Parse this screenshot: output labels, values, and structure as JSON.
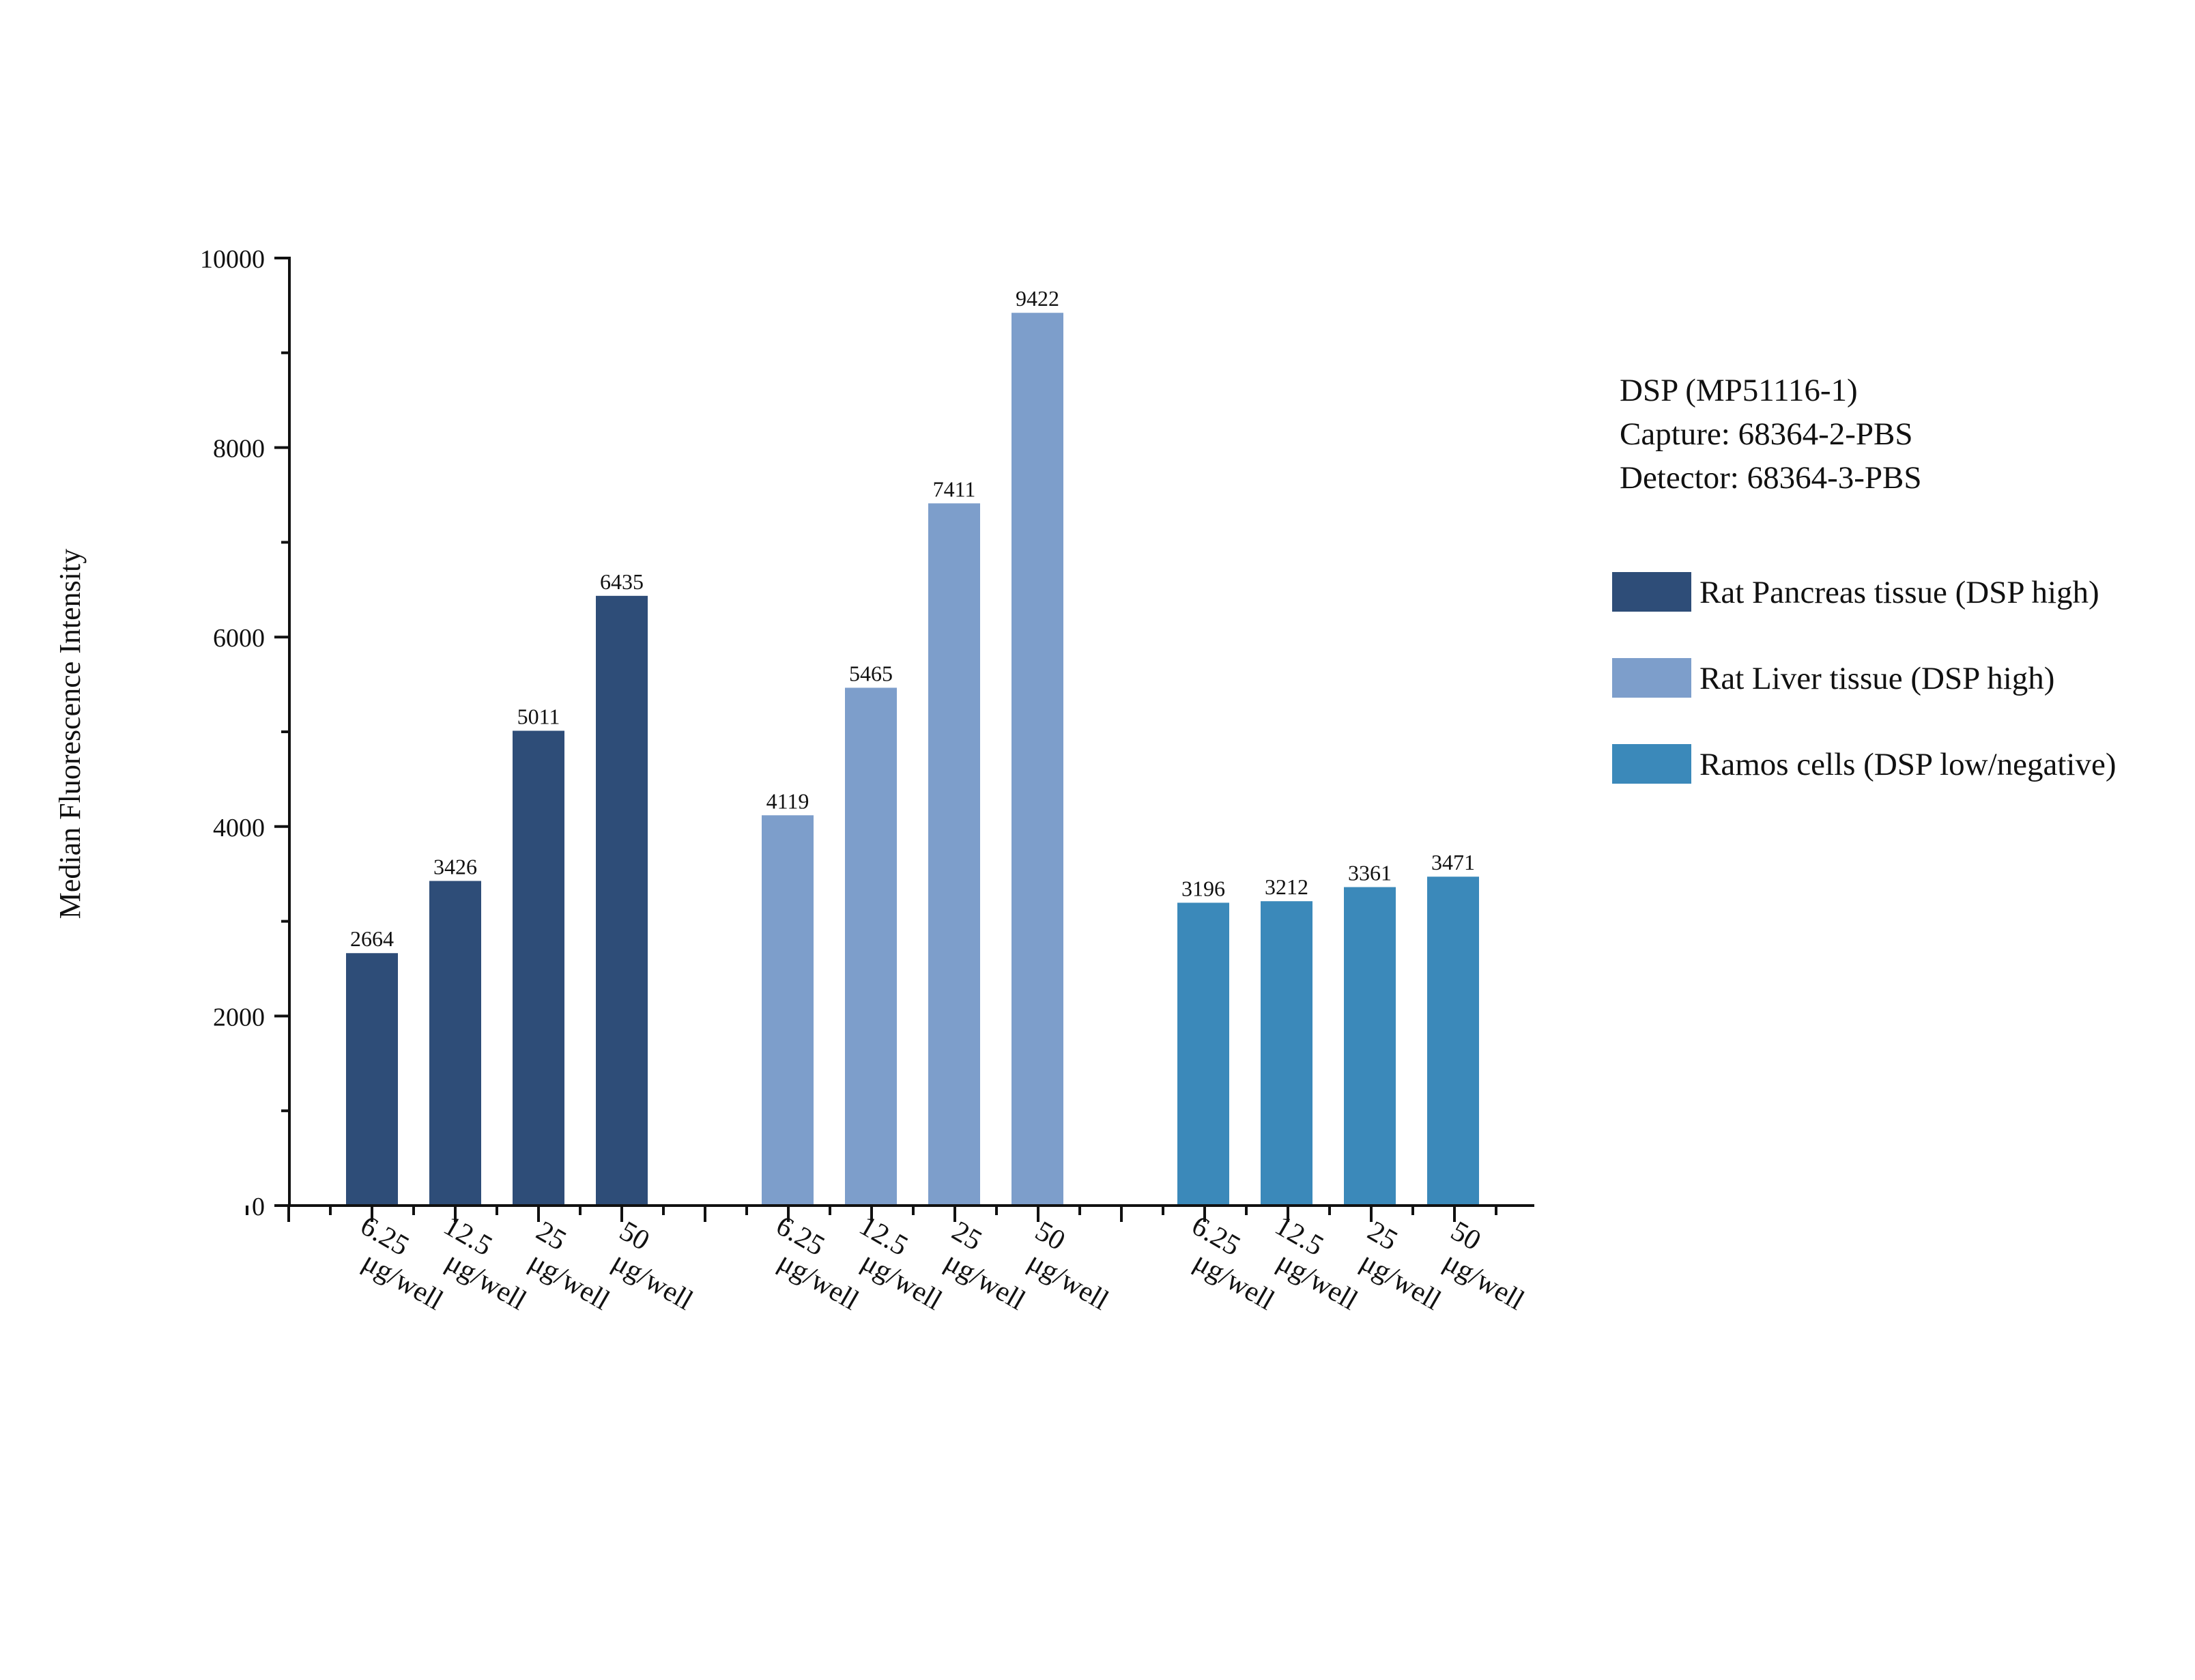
{
  "chart_data": {
    "type": "bar",
    "ylabel": "Median Fluorescence Intensity",
    "xlabel": "",
    "ylim": [
      0,
      10000
    ],
    "y_ticks": [
      0,
      2000,
      4000,
      6000,
      8000,
      10000
    ],
    "y_tick_labels": [
      "0",
      "2000",
      "4000",
      "6000",
      "8000",
      "10000"
    ],
    "categories": [
      "6.25 μg/well",
      "12.5 μg/well",
      "25 μg/well",
      "50 μg/well"
    ],
    "series": [
      {
        "name": "Rat Pancreas tissue (DSP high)",
        "color": "#2E4D78",
        "values": [
          2664,
          3426,
          5011,
          6435
        ],
        "labels": [
          "2664",
          "3426",
          "5011",
          "6435"
        ]
      },
      {
        "name": "Rat Liver tissue (DSP high)",
        "color": "#7D9ECB",
        "values": [
          4119,
          5465,
          7411,
          9422
        ],
        "labels": [
          "4119",
          "5465",
          "7411",
          "9422"
        ]
      },
      {
        "name": "Ramos cells (DSP low/negative)",
        "color": "#3B89BA",
        "values": [
          3196,
          3212,
          3361,
          3471
        ],
        "labels": [
          "3196",
          "3212",
          "3361",
          "3471"
        ]
      }
    ],
    "annotation": {
      "lines": [
        "DSP (MP51116-1)",
        "Capture: 68364-2-PBS",
        "Detector: 68364-3-PBS"
      ]
    },
    "legend_position": "right",
    "grid": false
  }
}
